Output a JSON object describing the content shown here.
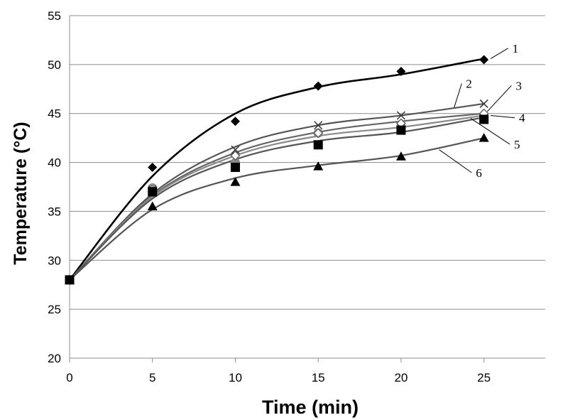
{
  "chart_data": {
    "type": "line",
    "title": "",
    "xlabel": "Time (min)",
    "ylabel": "Temperature (°C)",
    "xlim": [
      0,
      28.7
    ],
    "ylim": [
      20,
      55
    ],
    "x_ticks": [
      0,
      5,
      10,
      15,
      20,
      25
    ],
    "y_ticks": [
      20,
      25,
      30,
      35,
      40,
      45,
      50,
      55
    ],
    "x": [
      0,
      5,
      10,
      15,
      20,
      25
    ],
    "grid": "horizontal",
    "series": [
      {
        "name": "1",
        "marker": "diamond",
        "color": "#000000",
        "values": [
          28,
          39.5,
          44.2,
          47.8,
          49.3,
          50.5
        ]
      },
      {
        "name": "2",
        "marker": "x",
        "color": "#404040",
        "values": [
          28,
          37.2,
          41.3,
          43.8,
          44.8,
          46.0
        ]
      },
      {
        "name": "3",
        "marker": "open-diamond",
        "color": "#404040",
        "values": [
          28,
          37.0,
          40.7,
          43.0,
          44.0,
          45.0
        ]
      },
      {
        "name": "4",
        "marker": "circle",
        "color": "#808080",
        "values": [
          28,
          37.4,
          40.0,
          43.0,
          43.7,
          44.7
        ]
      },
      {
        "name": "5",
        "marker": "square",
        "color": "#000000",
        "values": [
          28,
          37.0,
          39.5,
          41.8,
          43.3,
          44.4
        ]
      },
      {
        "name": "6",
        "marker": "triangle",
        "color": "#000000",
        "values": [
          28,
          35.5,
          38.0,
          39.6,
          40.6,
          42.5
        ]
      }
    ],
    "fit_curves": [
      {
        "name": "1",
        "color": "#000000",
        "points": [
          [
            0,
            28
          ],
          [
            5,
            38.6
          ],
          [
            10,
            45.0
          ],
          [
            15,
            47.7
          ],
          [
            20,
            49.0
          ],
          [
            25,
            50.6
          ]
        ]
      },
      {
        "name": "2",
        "color": "#555555",
        "points": [
          [
            0,
            28
          ],
          [
            5,
            36.8
          ],
          [
            10,
            41.6
          ],
          [
            15,
            43.8
          ],
          [
            20,
            44.8
          ],
          [
            25,
            46.0
          ]
        ]
      },
      {
        "name": "3",
        "color": "#666666",
        "points": [
          [
            0,
            28
          ],
          [
            5,
            36.6
          ],
          [
            10,
            41.0
          ],
          [
            15,
            43.1
          ],
          [
            20,
            44.2
          ],
          [
            25,
            45.0
          ]
        ]
      },
      {
        "name": "4",
        "color": "#8a8a8a",
        "points": [
          [
            0,
            28
          ],
          [
            5,
            36.5
          ],
          [
            10,
            40.7
          ],
          [
            15,
            42.7
          ],
          [
            20,
            43.6
          ],
          [
            25,
            44.8
          ]
        ]
      },
      {
        "name": "5",
        "color": "#555555",
        "points": [
          [
            0,
            28
          ],
          [
            5,
            36.3
          ],
          [
            10,
            40.3
          ],
          [
            15,
            42.2
          ],
          [
            20,
            43.1
          ],
          [
            25,
            44.6
          ]
        ]
      },
      {
        "name": "6",
        "color": "#555555",
        "points": [
          [
            0,
            28
          ],
          [
            5,
            35.2
          ],
          [
            10,
            38.4
          ],
          [
            15,
            39.7
          ],
          [
            20,
            40.7
          ],
          [
            25,
            42.5
          ]
        ]
      }
    ],
    "series_labels": [
      {
        "text": "1",
        "label_at": [
          26.8,
          51.3
        ],
        "anchor": [
          25.4,
          50.6
        ]
      },
      {
        "text": "2",
        "label_at": [
          24.0,
          47.7
        ],
        "anchor": [
          23.2,
          45.6
        ]
      },
      {
        "text": "3",
        "label_at": [
          27.0,
          47.5
        ],
        "anchor": [
          25.2,
          45.2
        ]
      },
      {
        "text": "4",
        "label_at": [
          27.2,
          44.2
        ],
        "anchor": [
          25.4,
          44.8
        ]
      },
      {
        "text": "5",
        "label_at": [
          26.9,
          41.5
        ],
        "anchor": [
          24.2,
          44.5
        ]
      },
      {
        "text": "6",
        "label_at": [
          24.6,
          38.6
        ],
        "anchor": [
          22.3,
          41.3
        ]
      }
    ]
  }
}
